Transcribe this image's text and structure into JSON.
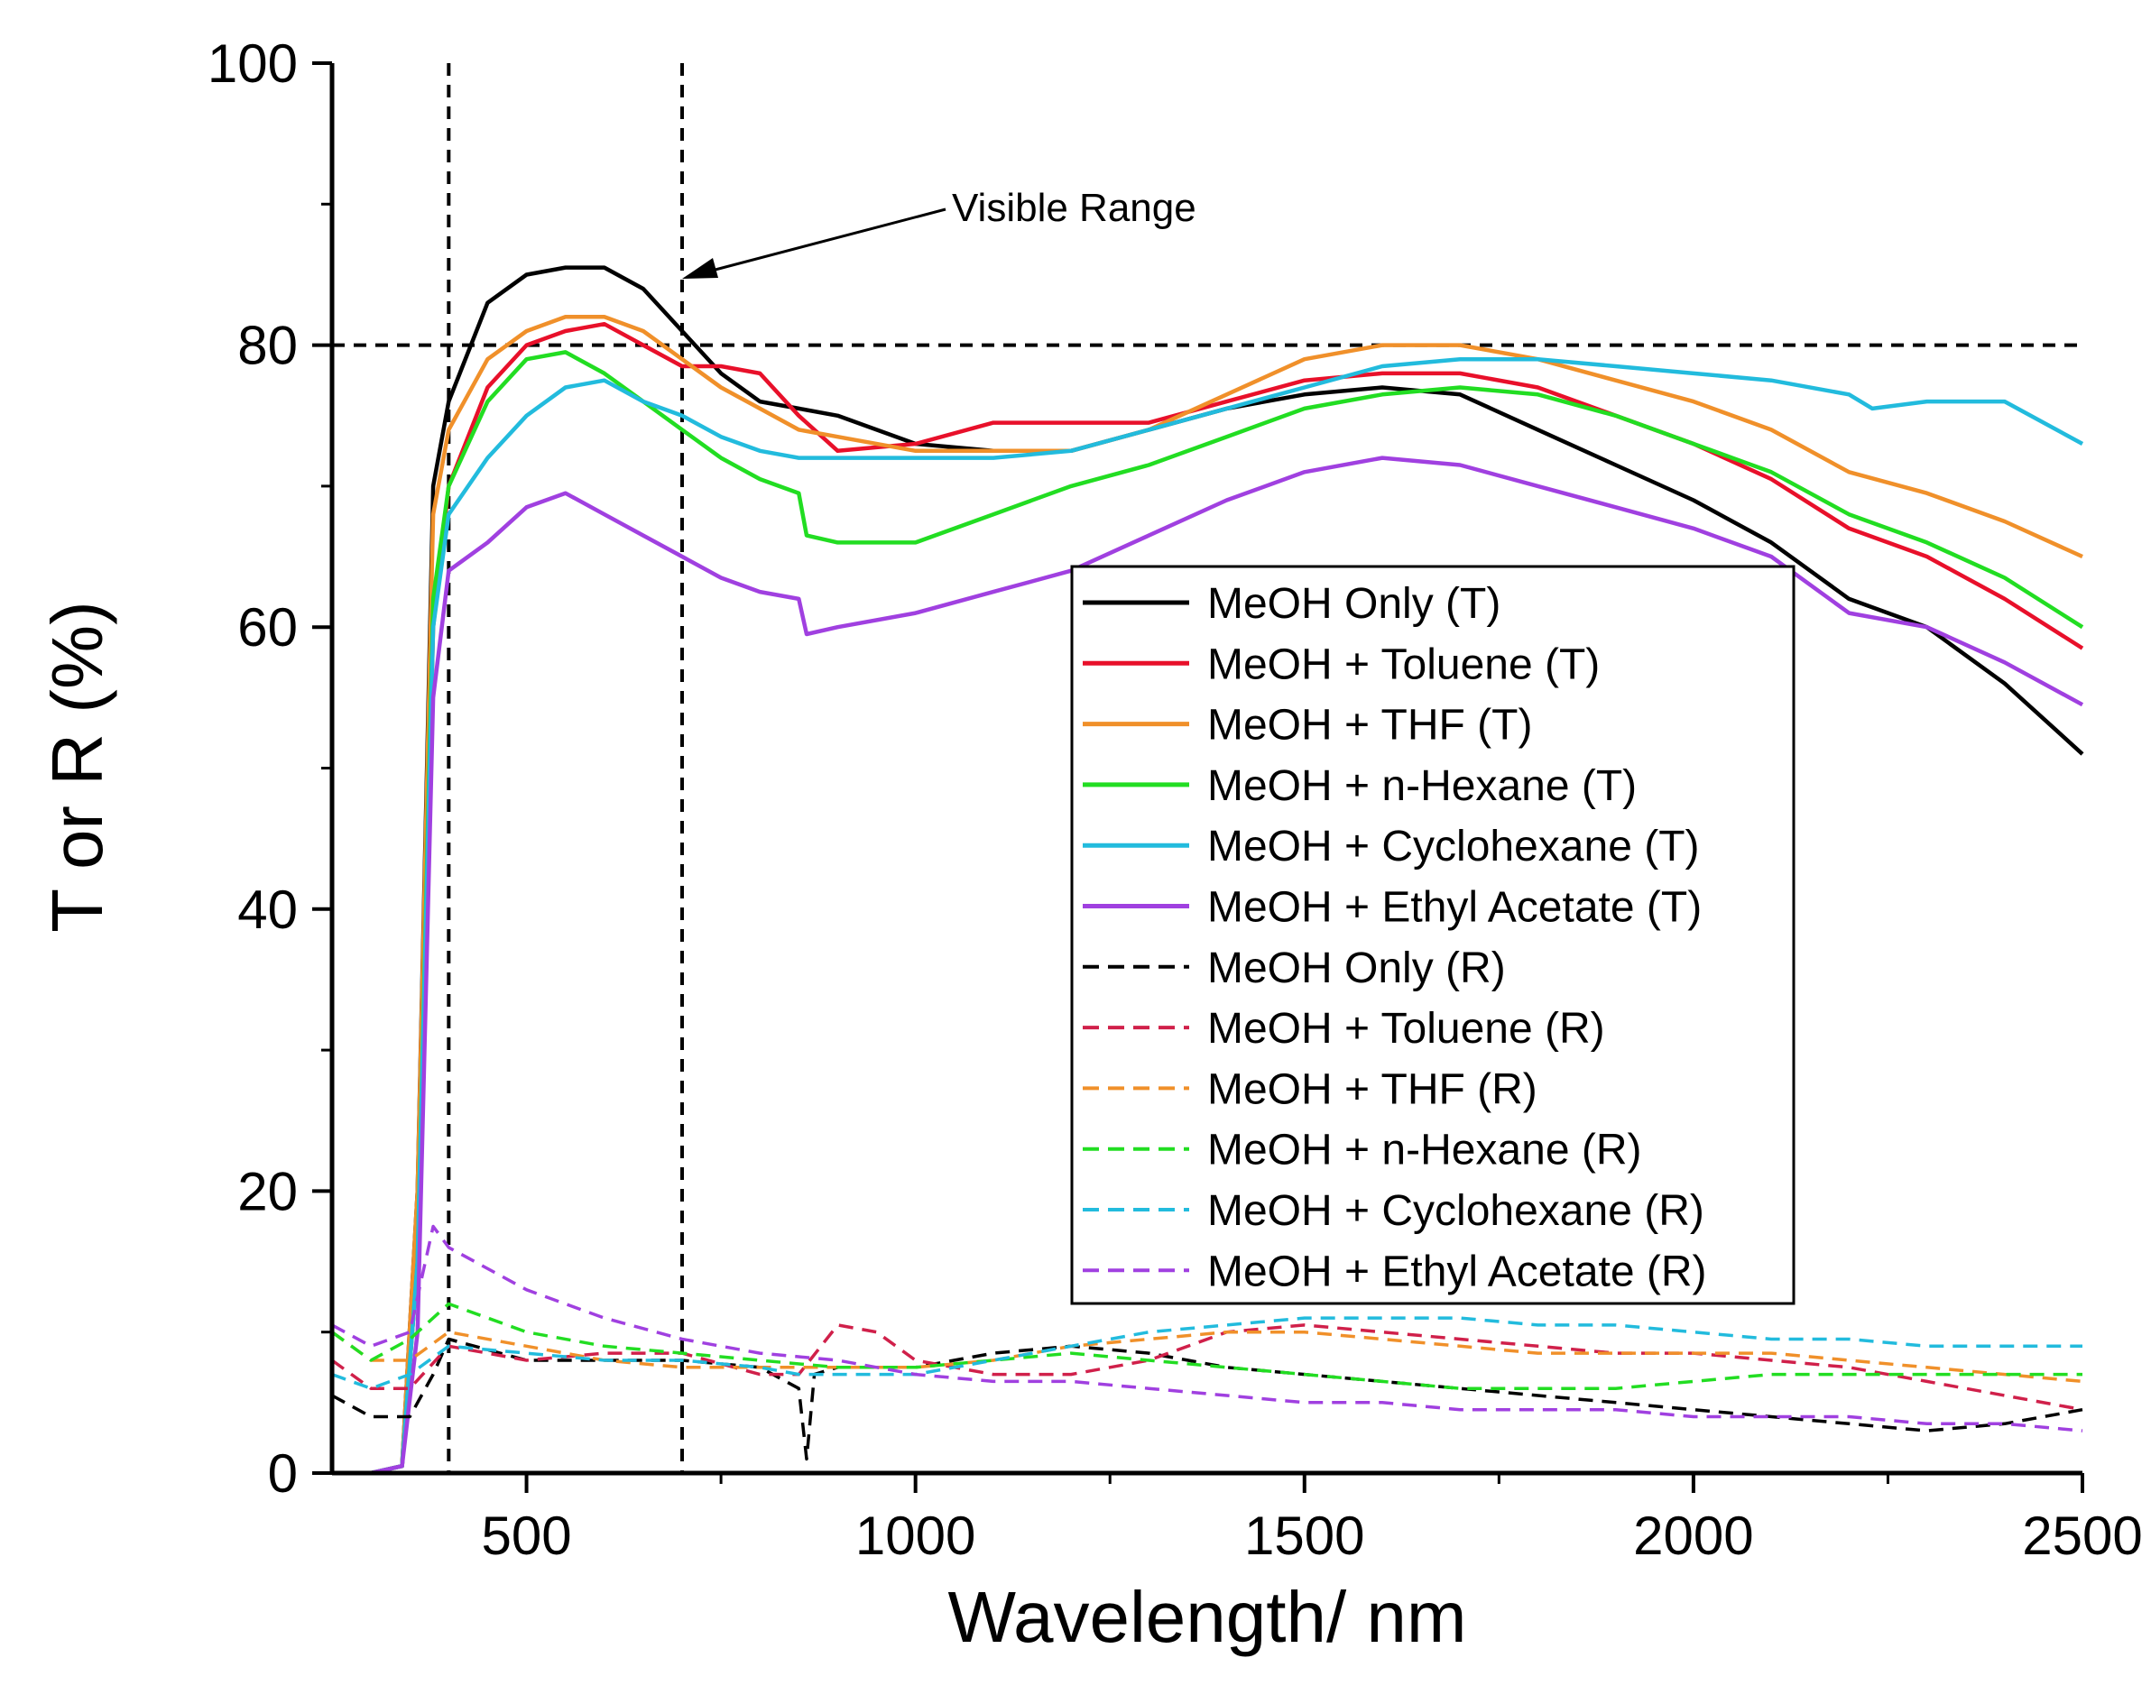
{
  "chart_data": {
    "type": "line",
    "title": "",
    "xlabel": "Wavelength/ nm",
    "ylabel": "T or R (%)",
    "xlim": [
      250,
      2500
    ],
    "ylim": [
      0,
      100
    ],
    "xticks": [
      500,
      1000,
      1500,
      2000,
      2500
    ],
    "yticks": [
      0,
      20,
      40,
      60,
      80,
      100
    ],
    "grid": false,
    "legend_position": "center-right",
    "reference_lines": {
      "vertical": [
        400,
        700
      ],
      "horizontal": [
        80
      ]
    },
    "annotation": {
      "text": "Visible Range",
      "points_to": [
        700,
        84
      ]
    },
    "series": [
      {
        "name": "MeOH Only (T)",
        "color": "#000000",
        "style": "solid",
        "x": [
          250,
          300,
          340,
          360,
          380,
          400,
          450,
          500,
          550,
          600,
          650,
          700,
          750,
          800,
          850,
          900,
          1000,
          1100,
          1200,
          1300,
          1400,
          1500,
          1600,
          1700,
          1800,
          1900,
          2000,
          2100,
          2200,
          2300,
          2400,
          2500
        ],
        "y": [
          0,
          0,
          0.5,
          20,
          70,
          76,
          83,
          85,
          85.5,
          85.5,
          84,
          81,
          78,
          76,
          75.5,
          75,
          73,
          72.5,
          72.5,
          74,
          75.5,
          76.5,
          77,
          76.5,
          74,
          71.5,
          69,
          66,
          62,
          60,
          56,
          51
        ]
      },
      {
        "name": "MeOH + Toluene (T)",
        "color": "#e8102a",
        "style": "solid",
        "x": [
          250,
          300,
          340,
          360,
          380,
          400,
          450,
          500,
          550,
          600,
          650,
          700,
          750,
          800,
          850,
          900,
          1000,
          1100,
          1200,
          1300,
          1400,
          1500,
          1600,
          1700,
          1800,
          1900,
          2000,
          2100,
          2200,
          2300,
          2400,
          2500
        ],
        "y": [
          0,
          0,
          0.5,
          15,
          60,
          70,
          77,
          80,
          81,
          81.5,
          80,
          78.5,
          78.5,
          78,
          75,
          72.5,
          73,
          74.5,
          74.5,
          74.5,
          76,
          77.5,
          78,
          78,
          77,
          75,
          73,
          70.5,
          67,
          65,
          62,
          58.5
        ]
      },
      {
        "name": "MeOH + THF (T)",
        "color": "#f0902a",
        "style": "solid",
        "x": [
          250,
          300,
          340,
          360,
          380,
          400,
          450,
          500,
          550,
          600,
          650,
          700,
          750,
          800,
          850,
          900,
          1000,
          1100,
          1200,
          1300,
          1400,
          1500,
          1600,
          1700,
          1800,
          1900,
          2000,
          2100,
          2200,
          2300,
          2400,
          2500
        ],
        "y": [
          0,
          0,
          0.5,
          20,
          68,
          74,
          79,
          81,
          82,
          82,
          81,
          79,
          77,
          75.5,
          74,
          73.5,
          72.5,
          72.5,
          72.5,
          74,
          76.5,
          79,
          80,
          80,
          79,
          77.5,
          76,
          74,
          71,
          69.5,
          67.5,
          65
        ]
      },
      {
        "name": "MeOH + n-Hexane (T)",
        "color": "#22dd22",
        "style": "solid",
        "x": [
          250,
          300,
          340,
          360,
          380,
          400,
          450,
          500,
          550,
          600,
          650,
          700,
          750,
          800,
          850,
          860,
          900,
          1000,
          1100,
          1200,
          1300,
          1400,
          1500,
          1600,
          1700,
          1800,
          1900,
          2000,
          2100,
          2200,
          2300,
          2400,
          2500
        ],
        "y": [
          0,
          0,
          0.5,
          15,
          62,
          70,
          76,
          79,
          79.5,
          78,
          76,
          74,
          72,
          70.5,
          69.5,
          66.5,
          66,
          66,
          68,
          70,
          71.5,
          73.5,
          75.5,
          76.5,
          77,
          76.5,
          75,
          73,
          71,
          68,
          66,
          63.5,
          60
        ]
      },
      {
        "name": "MeOH + Cyclohexane (T)",
        "color": "#22bbdd",
        "style": "solid",
        "x": [
          250,
          300,
          340,
          360,
          380,
          400,
          450,
          500,
          550,
          600,
          650,
          700,
          750,
          800,
          850,
          900,
          1000,
          1100,
          1200,
          1300,
          1400,
          1500,
          1600,
          1700,
          1800,
          1900,
          2000,
          2100,
          2200,
          2230,
          2300,
          2400,
          2500
        ],
        "y": [
          0,
          0,
          0.5,
          15,
          60,
          68,
          72,
          75,
          77,
          77.5,
          76,
          75,
          73.5,
          72.5,
          72,
          72,
          72,
          72,
          72.5,
          74,
          75.5,
          77,
          78.5,
          79,
          79,
          78.5,
          78,
          77.5,
          76.5,
          75.5,
          76,
          76,
          73
        ]
      },
      {
        "name": "MeOH + Ethyl Acetate (T)",
        "color": "#a040e0",
        "style": "solid",
        "x": [
          250,
          300,
          340,
          360,
          380,
          400,
          450,
          500,
          550,
          600,
          650,
          700,
          750,
          800,
          850,
          860,
          900,
          1000,
          1100,
          1200,
          1300,
          1400,
          1500,
          1600,
          1700,
          1800,
          1900,
          2000,
          2100,
          2200,
          2300,
          2400,
          2500
        ],
        "y": [
          0,
          0,
          0.5,
          10,
          55,
          64,
          66,
          68.5,
          69.5,
          68,
          66.5,
          65,
          63.5,
          62.5,
          62,
          59.5,
          60,
          61,
          62.5,
          64,
          66.5,
          69,
          71,
          72,
          71.5,
          70,
          68.5,
          67,
          65,
          61,
          60,
          57.5,
          54.5
        ]
      },
      {
        "name": "MeOH Only (R)",
        "color": "#000000",
        "style": "dashed",
        "x": [
          250,
          300,
          350,
          380,
          400,
          500,
          600,
          700,
          800,
          850,
          860,
          870,
          900,
          1000,
          1100,
          1200,
          1300,
          1400,
          1500,
          1600,
          1700,
          1800,
          1900,
          2000,
          2100,
          2200,
          2300,
          2400,
          2500
        ],
        "y": [
          5.5,
          4,
          4,
          7,
          9.5,
          8,
          8,
          8,
          7.5,
          6,
          1,
          7,
          7.5,
          7.5,
          8.5,
          9,
          8.5,
          7.5,
          7,
          6.5,
          6,
          5.5,
          5,
          4.5,
          4,
          3.5,
          3,
          3.5,
          4.5
        ]
      },
      {
        "name": "MeOH + Toluene (R)",
        "color": "#d0204a",
        "style": "dashed",
        "x": [
          250,
          300,
          350,
          400,
          450,
          500,
          600,
          700,
          800,
          850,
          900,
          950,
          1000,
          1100,
          1200,
          1300,
          1400,
          1500,
          1600,
          1700,
          1800,
          1900,
          2000,
          2100,
          2200,
          2300,
          2400,
          2500
        ],
        "y": [
          8,
          6,
          6,
          9,
          8.5,
          8,
          8.5,
          8.5,
          7,
          7,
          10.5,
          10,
          8,
          7,
          7,
          8,
          10,
          10.5,
          10,
          9.5,
          9,
          8.5,
          8.5,
          8,
          7.5,
          6.5,
          5.5,
          4.5
        ]
      },
      {
        "name": "MeOH + THF (R)",
        "color": "#f0902a",
        "style": "dashed",
        "x": [
          250,
          300,
          350,
          400,
          500,
          600,
          700,
          800,
          900,
          1000,
          1100,
          1200,
          1300,
          1400,
          1500,
          1600,
          1700,
          1800,
          1900,
          2000,
          2100,
          2200,
          2300,
          2400,
          2500
        ],
        "y": [
          10,
          8,
          8,
          10,
          9,
          8,
          7.5,
          7.5,
          7.5,
          7.5,
          8,
          9,
          9.5,
          10,
          10,
          9.5,
          9,
          8.5,
          8.5,
          8.5,
          8.5,
          8,
          7.5,
          7,
          6.5
        ]
      },
      {
        "name": "MeOH + n-Hexane (R)",
        "color": "#22dd22",
        "style": "dashed",
        "x": [
          250,
          300,
          350,
          400,
          500,
          600,
          700,
          800,
          900,
          1000,
          1100,
          1200,
          1300,
          1400,
          1500,
          1600,
          1700,
          1800,
          1900,
          2000,
          2100,
          2200,
          2300,
          2400,
          2500
        ],
        "y": [
          10,
          8,
          9.5,
          12,
          10,
          9,
          8.5,
          8,
          7.5,
          7.5,
          8,
          8.5,
          8,
          7.5,
          7,
          6.5,
          6,
          6,
          6,
          6.5,
          7,
          7,
          7,
          7,
          7
        ]
      },
      {
        "name": "MeOH + Cyclohexane (R)",
        "color": "#22bbdd",
        "style": "dashed",
        "x": [
          250,
          300,
          350,
          400,
          500,
          600,
          700,
          800,
          850,
          900,
          1000,
          1100,
          1200,
          1300,
          1400,
          1500,
          1600,
          1700,
          1800,
          1900,
          2000,
          2100,
          2200,
          2300,
          2400,
          2500
        ],
        "y": [
          7,
          6,
          7,
          9,
          8.5,
          8,
          8,
          7.5,
          7,
          7,
          7,
          8,
          9,
          10,
          10.5,
          11,
          11,
          11,
          10.5,
          10.5,
          10,
          9.5,
          9.5,
          9,
          9,
          9
        ]
      },
      {
        "name": "MeOH + Ethyl Acetate (R)",
        "color": "#a040e0",
        "style": "dashed",
        "x": [
          250,
          300,
          350,
          380,
          400,
          500,
          600,
          700,
          800,
          900,
          1000,
          1100,
          1200,
          1300,
          1400,
          1500,
          1600,
          1700,
          1800,
          1900,
          2000,
          2100,
          2200,
          2300,
          2400,
          2500
        ],
        "y": [
          10.5,
          9,
          10,
          17.5,
          16,
          13,
          11,
          9.5,
          8.5,
          8,
          7,
          6.5,
          6.5,
          6,
          5.5,
          5,
          5,
          4.5,
          4.5,
          4.5,
          4,
          4,
          4,
          3.5,
          3.5,
          3
        ]
      }
    ]
  }
}
